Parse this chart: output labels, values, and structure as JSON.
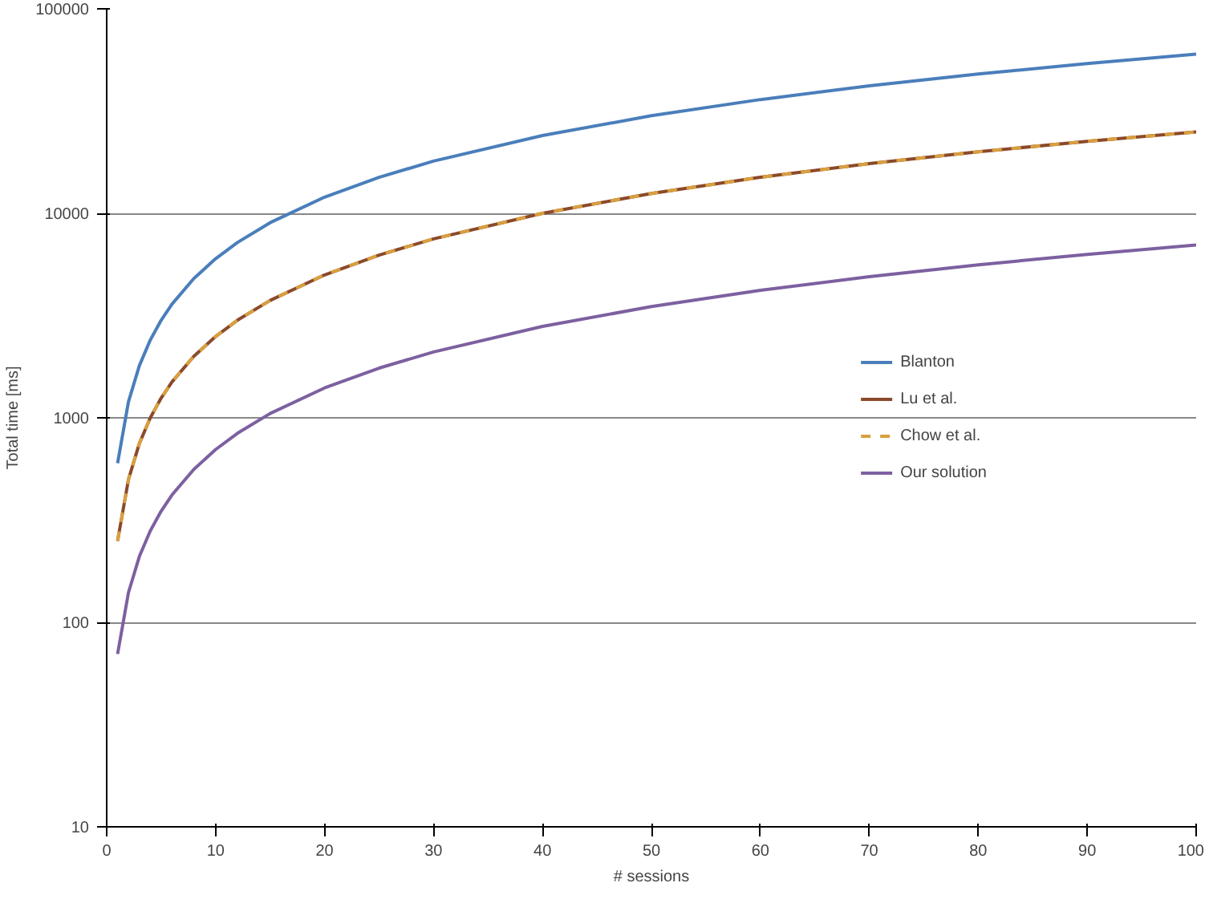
{
  "chart_data": {
    "type": "line",
    "xlabel": "# sessions",
    "ylabel": "Total time [ms]",
    "log": "y",
    "grid": "y",
    "legend": "right",
    "marker": "none",
    "x": [
      1,
      2,
      3,
      4,
      5,
      6,
      8,
      10,
      12,
      15,
      20,
      25,
      30,
      40,
      50,
      60,
      70,
      80,
      90,
      100
    ],
    "xlim": [
      0,
      100
    ],
    "xticks": [
      0,
      10,
      20,
      30,
      40,
      50,
      60,
      70,
      80,
      90,
      100
    ],
    "ylim": [
      10,
      100000
    ],
    "yticks": [
      10,
      100,
      1000,
      10000,
      100000
    ],
    "series": [
      {
        "name": "Blanton",
        "color": "#4a7ebb",
        "line_style": "solid",
        "values": [
          600,
          1200,
          1800,
          2400,
          3000,
          3600,
          4800,
          6000,
          7200,
          9000,
          12000,
          15000,
          18000,
          24000,
          30000,
          36000,
          42000,
          48000,
          54000,
          60000
        ]
      },
      {
        "name": "Lu et al.",
        "color": "#8b4a2b",
        "line_style": "solid",
        "values": [
          250,
          500,
          750,
          1000,
          1250,
          1500,
          2000,
          2500,
          3000,
          3750,
          5000,
          6250,
          7500,
          10000,
          12500,
          15000,
          17500,
          20000,
          22500,
          25000
        ]
      },
      {
        "name": "Chow et al.",
        "color": "#d9a040",
        "line_style": "dashed",
        "values": [
          250,
          500,
          750,
          1000,
          1250,
          1500,
          2000,
          2500,
          3000,
          3750,
          5000,
          6250,
          7500,
          10000,
          12500,
          15000,
          17500,
          20000,
          22500,
          25000
        ]
      },
      {
        "name": "Our solution",
        "color": "#7d60a0",
        "line_style": "solid",
        "values": [
          70,
          140,
          210,
          280,
          350,
          420,
          560,
          700,
          840,
          1050,
          1400,
          1750,
          2100,
          2800,
          3500,
          4200,
          4900,
          5600,
          6300,
          7000
        ]
      }
    ]
  }
}
